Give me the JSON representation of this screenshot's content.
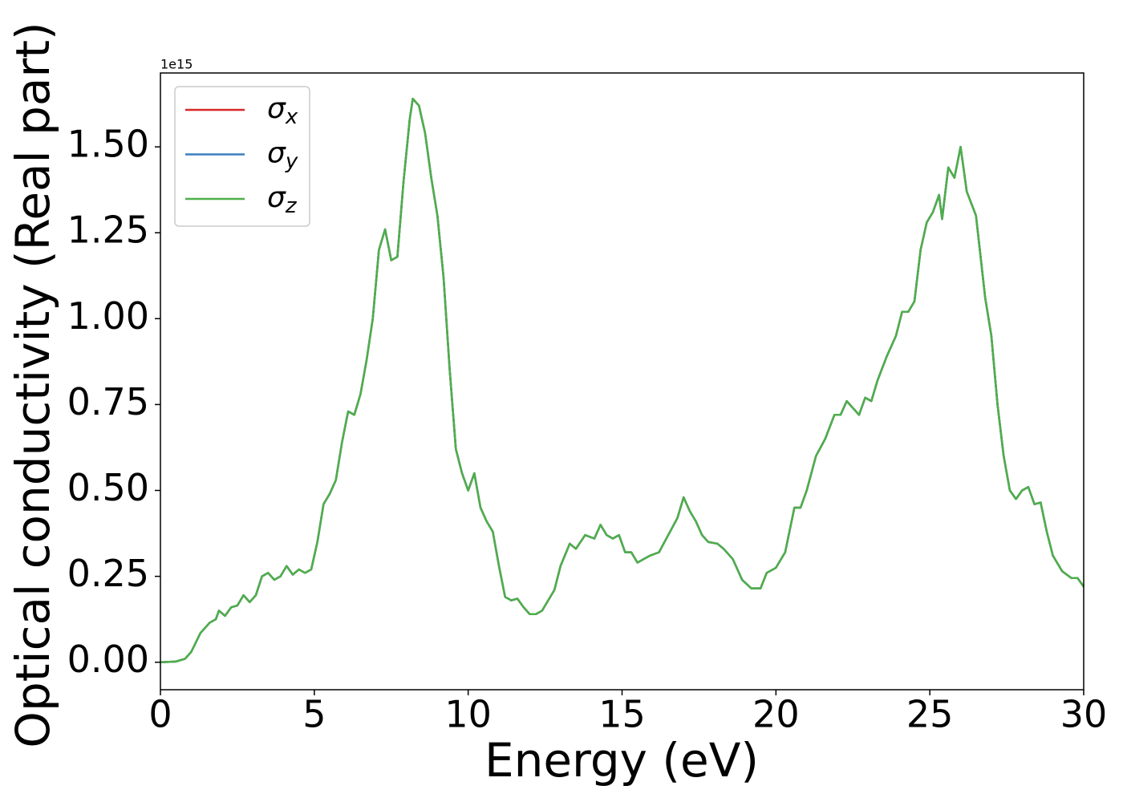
{
  "chart_data": {
    "type": "line",
    "xlabel": "Energy (eV)",
    "ylabel": "Optical conductivity (Real part)",
    "y_offset": "1e15",
    "x": [
      0,
      0.5,
      0.8,
      1.0,
      1.3,
      1.6,
      1.8,
      1.9,
      2.1,
      2.3,
      2.5,
      2.7,
      2.9,
      3.1,
      3.3,
      3.5,
      3.7,
      3.9,
      4.1,
      4.3,
      4.5,
      4.7,
      4.9,
      5.1,
      5.3,
      5.5,
      5.7,
      5.9,
      6.1,
      6.3,
      6.5,
      6.7,
      6.9,
      7.1,
      7.3,
      7.5,
      7.7,
      7.9,
      8.1,
      8.2,
      8.4,
      8.6,
      8.8,
      9.0,
      9.2,
      9.4,
      9.6,
      9.8,
      10.0,
      10.2,
      10.4,
      10.6,
      10.8,
      11.0,
      11.2,
      11.4,
      11.6,
      11.8,
      12.0,
      12.2,
      12.4,
      12.6,
      12.8,
      13.0,
      13.3,
      13.5,
      13.8,
      14.1,
      14.3,
      14.5,
      14.7,
      14.9,
      15.1,
      15.3,
      15.5,
      15.7,
      15.9,
      16.2,
      16.5,
      16.8,
      17.0,
      17.2,
      17.4,
      17.6,
      17.8,
      18.1,
      18.3,
      18.6,
      18.9,
      19.2,
      19.5,
      19.7,
      20.0,
      20.3,
      20.6,
      20.8,
      21.0,
      21.3,
      21.6,
      21.9,
      22.1,
      22.3,
      22.5,
      22.7,
      22.9,
      23.1,
      23.3,
      23.6,
      23.9,
      24.1,
      24.3,
      24.5,
      24.7,
      24.9,
      25.1,
      25.3,
      25.4,
      25.6,
      25.8,
      26.0,
      26.2,
      26.5,
      26.8,
      27.0,
      27.2,
      27.4,
      27.6,
      27.8,
      28.0,
      28.2,
      28.4,
      28.6,
      28.8,
      29.0,
      29.3,
      29.6,
      29.8,
      30.0
    ],
    "series": [
      {
        "name": "σx",
        "color": "#d62728",
        "values": [
          0,
          0.002,
          0.01,
          0.03,
          0.085,
          0.115,
          0.125,
          0.15,
          0.135,
          0.16,
          0.165,
          0.195,
          0.175,
          0.195,
          0.25,
          0.26,
          0.24,
          0.25,
          0.28,
          0.255,
          0.27,
          0.26,
          0.27,
          0.35,
          0.46,
          0.49,
          0.53,
          0.64,
          0.73,
          0.72,
          0.78,
          0.88,
          1.0,
          1.2,
          1.26,
          1.17,
          1.18,
          1.4,
          1.58,
          1.64,
          1.62,
          1.54,
          1.41,
          1.3,
          1.12,
          0.85,
          0.62,
          0.55,
          0.5,
          0.55,
          0.45,
          0.41,
          0.38,
          0.28,
          0.19,
          0.18,
          0.185,
          0.16,
          0.14,
          0.14,
          0.15,
          0.18,
          0.21,
          0.28,
          0.345,
          0.33,
          0.37,
          0.36,
          0.4,
          0.37,
          0.36,
          0.37,
          0.32,
          0.32,
          0.29,
          0.3,
          0.31,
          0.32,
          0.37,
          0.42,
          0.48,
          0.44,
          0.41,
          0.37,
          0.35,
          0.345,
          0.33,
          0.3,
          0.24,
          0.215,
          0.215,
          0.26,
          0.275,
          0.32,
          0.45,
          0.45,
          0.5,
          0.6,
          0.65,
          0.72,
          0.72,
          0.76,
          0.74,
          0.72,
          0.77,
          0.76,
          0.82,
          0.89,
          0.95,
          1.02,
          1.02,
          1.05,
          1.2,
          1.28,
          1.31,
          1.36,
          1.29,
          1.44,
          1.41,
          1.5,
          1.37,
          1.3,
          1.06,
          0.95,
          0.75,
          0.6,
          0.5,
          0.475,
          0.5,
          0.51,
          0.46,
          0.465,
          0.38,
          0.31,
          0.265,
          0.245,
          0.245,
          0.22
        ]
      },
      {
        "name": "σy",
        "color": "#3a7ebf",
        "values": [
          0,
          0.002,
          0.01,
          0.03,
          0.085,
          0.115,
          0.125,
          0.15,
          0.135,
          0.16,
          0.165,
          0.195,
          0.175,
          0.195,
          0.25,
          0.26,
          0.24,
          0.25,
          0.28,
          0.255,
          0.27,
          0.26,
          0.27,
          0.35,
          0.46,
          0.49,
          0.53,
          0.64,
          0.73,
          0.72,
          0.78,
          0.88,
          1.0,
          1.2,
          1.26,
          1.17,
          1.18,
          1.4,
          1.58,
          1.64,
          1.62,
          1.54,
          1.41,
          1.3,
          1.12,
          0.85,
          0.62,
          0.55,
          0.5,
          0.55,
          0.45,
          0.41,
          0.38,
          0.28,
          0.19,
          0.18,
          0.185,
          0.16,
          0.14,
          0.14,
          0.15,
          0.18,
          0.21,
          0.28,
          0.345,
          0.33,
          0.37,
          0.36,
          0.4,
          0.37,
          0.36,
          0.37,
          0.32,
          0.32,
          0.29,
          0.3,
          0.31,
          0.32,
          0.37,
          0.42,
          0.48,
          0.44,
          0.41,
          0.37,
          0.35,
          0.345,
          0.33,
          0.3,
          0.24,
          0.215,
          0.215,
          0.26,
          0.275,
          0.32,
          0.45,
          0.45,
          0.5,
          0.6,
          0.65,
          0.72,
          0.72,
          0.76,
          0.74,
          0.72,
          0.77,
          0.76,
          0.82,
          0.89,
          0.95,
          1.02,
          1.02,
          1.05,
          1.2,
          1.28,
          1.31,
          1.36,
          1.29,
          1.44,
          1.41,
          1.5,
          1.37,
          1.3,
          1.06,
          0.95,
          0.75,
          0.6,
          0.5,
          0.475,
          0.5,
          0.51,
          0.46,
          0.465,
          0.38,
          0.31,
          0.265,
          0.245,
          0.245,
          0.22
        ]
      },
      {
        "name": "σz",
        "color": "#4daf4a",
        "values": [
          0,
          0.002,
          0.01,
          0.03,
          0.085,
          0.115,
          0.125,
          0.15,
          0.135,
          0.16,
          0.165,
          0.195,
          0.175,
          0.195,
          0.25,
          0.26,
          0.24,
          0.25,
          0.28,
          0.255,
          0.27,
          0.26,
          0.27,
          0.35,
          0.46,
          0.49,
          0.53,
          0.64,
          0.73,
          0.72,
          0.78,
          0.88,
          1.0,
          1.2,
          1.26,
          1.17,
          1.18,
          1.4,
          1.58,
          1.64,
          1.62,
          1.54,
          1.41,
          1.3,
          1.12,
          0.85,
          0.62,
          0.55,
          0.5,
          0.55,
          0.45,
          0.41,
          0.38,
          0.28,
          0.19,
          0.18,
          0.185,
          0.16,
          0.14,
          0.14,
          0.15,
          0.18,
          0.21,
          0.28,
          0.345,
          0.33,
          0.37,
          0.36,
          0.4,
          0.37,
          0.36,
          0.37,
          0.32,
          0.32,
          0.29,
          0.3,
          0.31,
          0.32,
          0.37,
          0.42,
          0.48,
          0.44,
          0.41,
          0.37,
          0.35,
          0.345,
          0.33,
          0.3,
          0.24,
          0.215,
          0.215,
          0.26,
          0.275,
          0.32,
          0.45,
          0.45,
          0.5,
          0.6,
          0.65,
          0.72,
          0.72,
          0.76,
          0.74,
          0.72,
          0.77,
          0.76,
          0.82,
          0.89,
          0.95,
          1.02,
          1.02,
          1.05,
          1.2,
          1.28,
          1.31,
          1.36,
          1.29,
          1.44,
          1.41,
          1.5,
          1.37,
          1.3,
          1.06,
          0.95,
          0.75,
          0.6,
          0.5,
          0.475,
          0.5,
          0.51,
          0.46,
          0.465,
          0.38,
          0.31,
          0.265,
          0.245,
          0.245,
          0.22
        ]
      }
    ],
    "xlim": [
      0,
      30
    ],
    "xticks": [
      0,
      5,
      10,
      15,
      20,
      25,
      30
    ],
    "ylim": [
      -0.08,
      1.715
    ],
    "yticks": [
      {
        "value": 0,
        "label": "0.00"
      },
      {
        "value": 0.25,
        "label": "0.25"
      },
      {
        "value": 0.5,
        "label": "0.50"
      },
      {
        "value": 0.75,
        "label": "0.75"
      },
      {
        "value": 1.0,
        "label": "1.00"
      },
      {
        "value": 1.25,
        "label": "1.25"
      },
      {
        "value": 1.5,
        "label": "1.50"
      }
    ],
    "grid": false,
    "legend": "upper left"
  }
}
